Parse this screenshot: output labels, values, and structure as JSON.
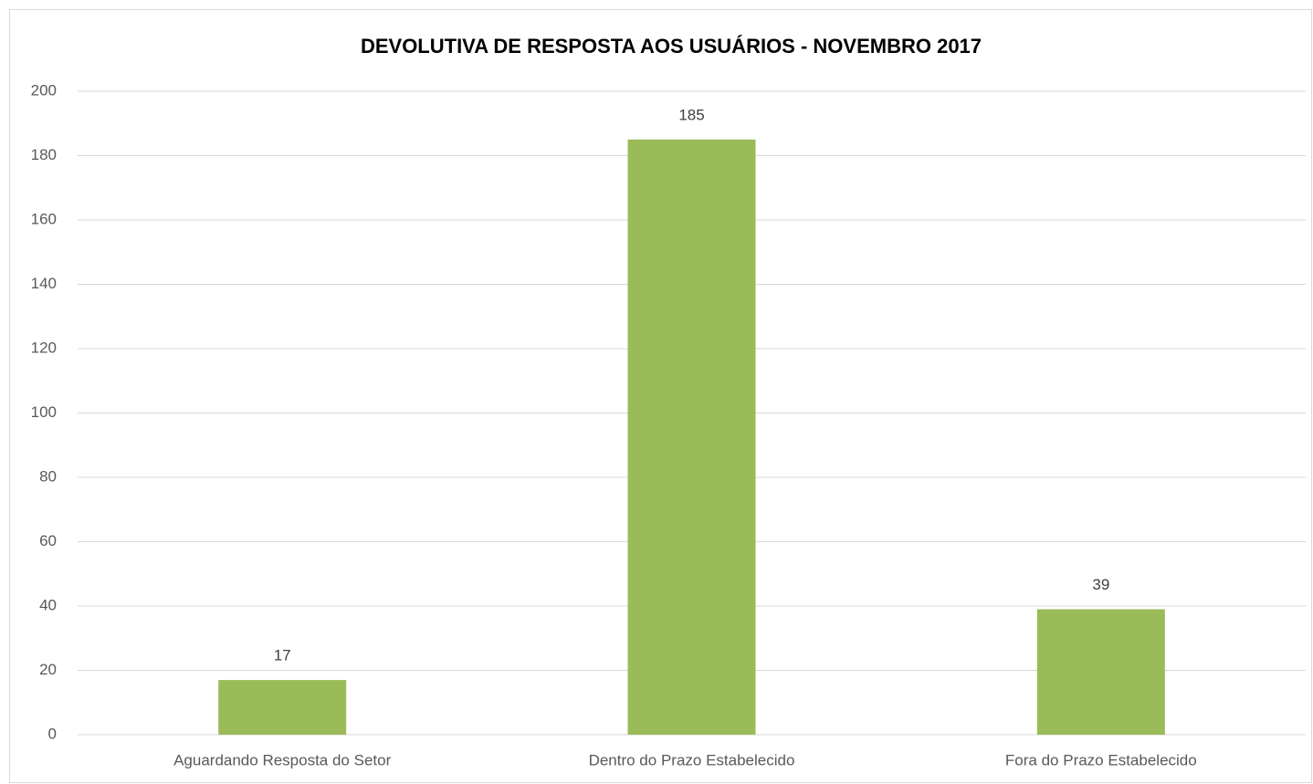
{
  "chart_data": {
    "type": "bar",
    "title": "DEVOLUTIVA DE RESPOSTA AOS USUÁRIOS - NOVEMBRO 2017",
    "categories": [
      "Aguardando Resposta do Setor",
      "Dentro do Prazo Estabelecido",
      "Fora do Prazo Estabelecido"
    ],
    "values": [
      17,
      185,
      39
    ],
    "color": "#9bbb59",
    "ylim": [
      0,
      200
    ],
    "yticks": [
      0,
      20,
      40,
      60,
      80,
      100,
      120,
      140,
      160,
      180,
      200
    ],
    "grid": true
  }
}
